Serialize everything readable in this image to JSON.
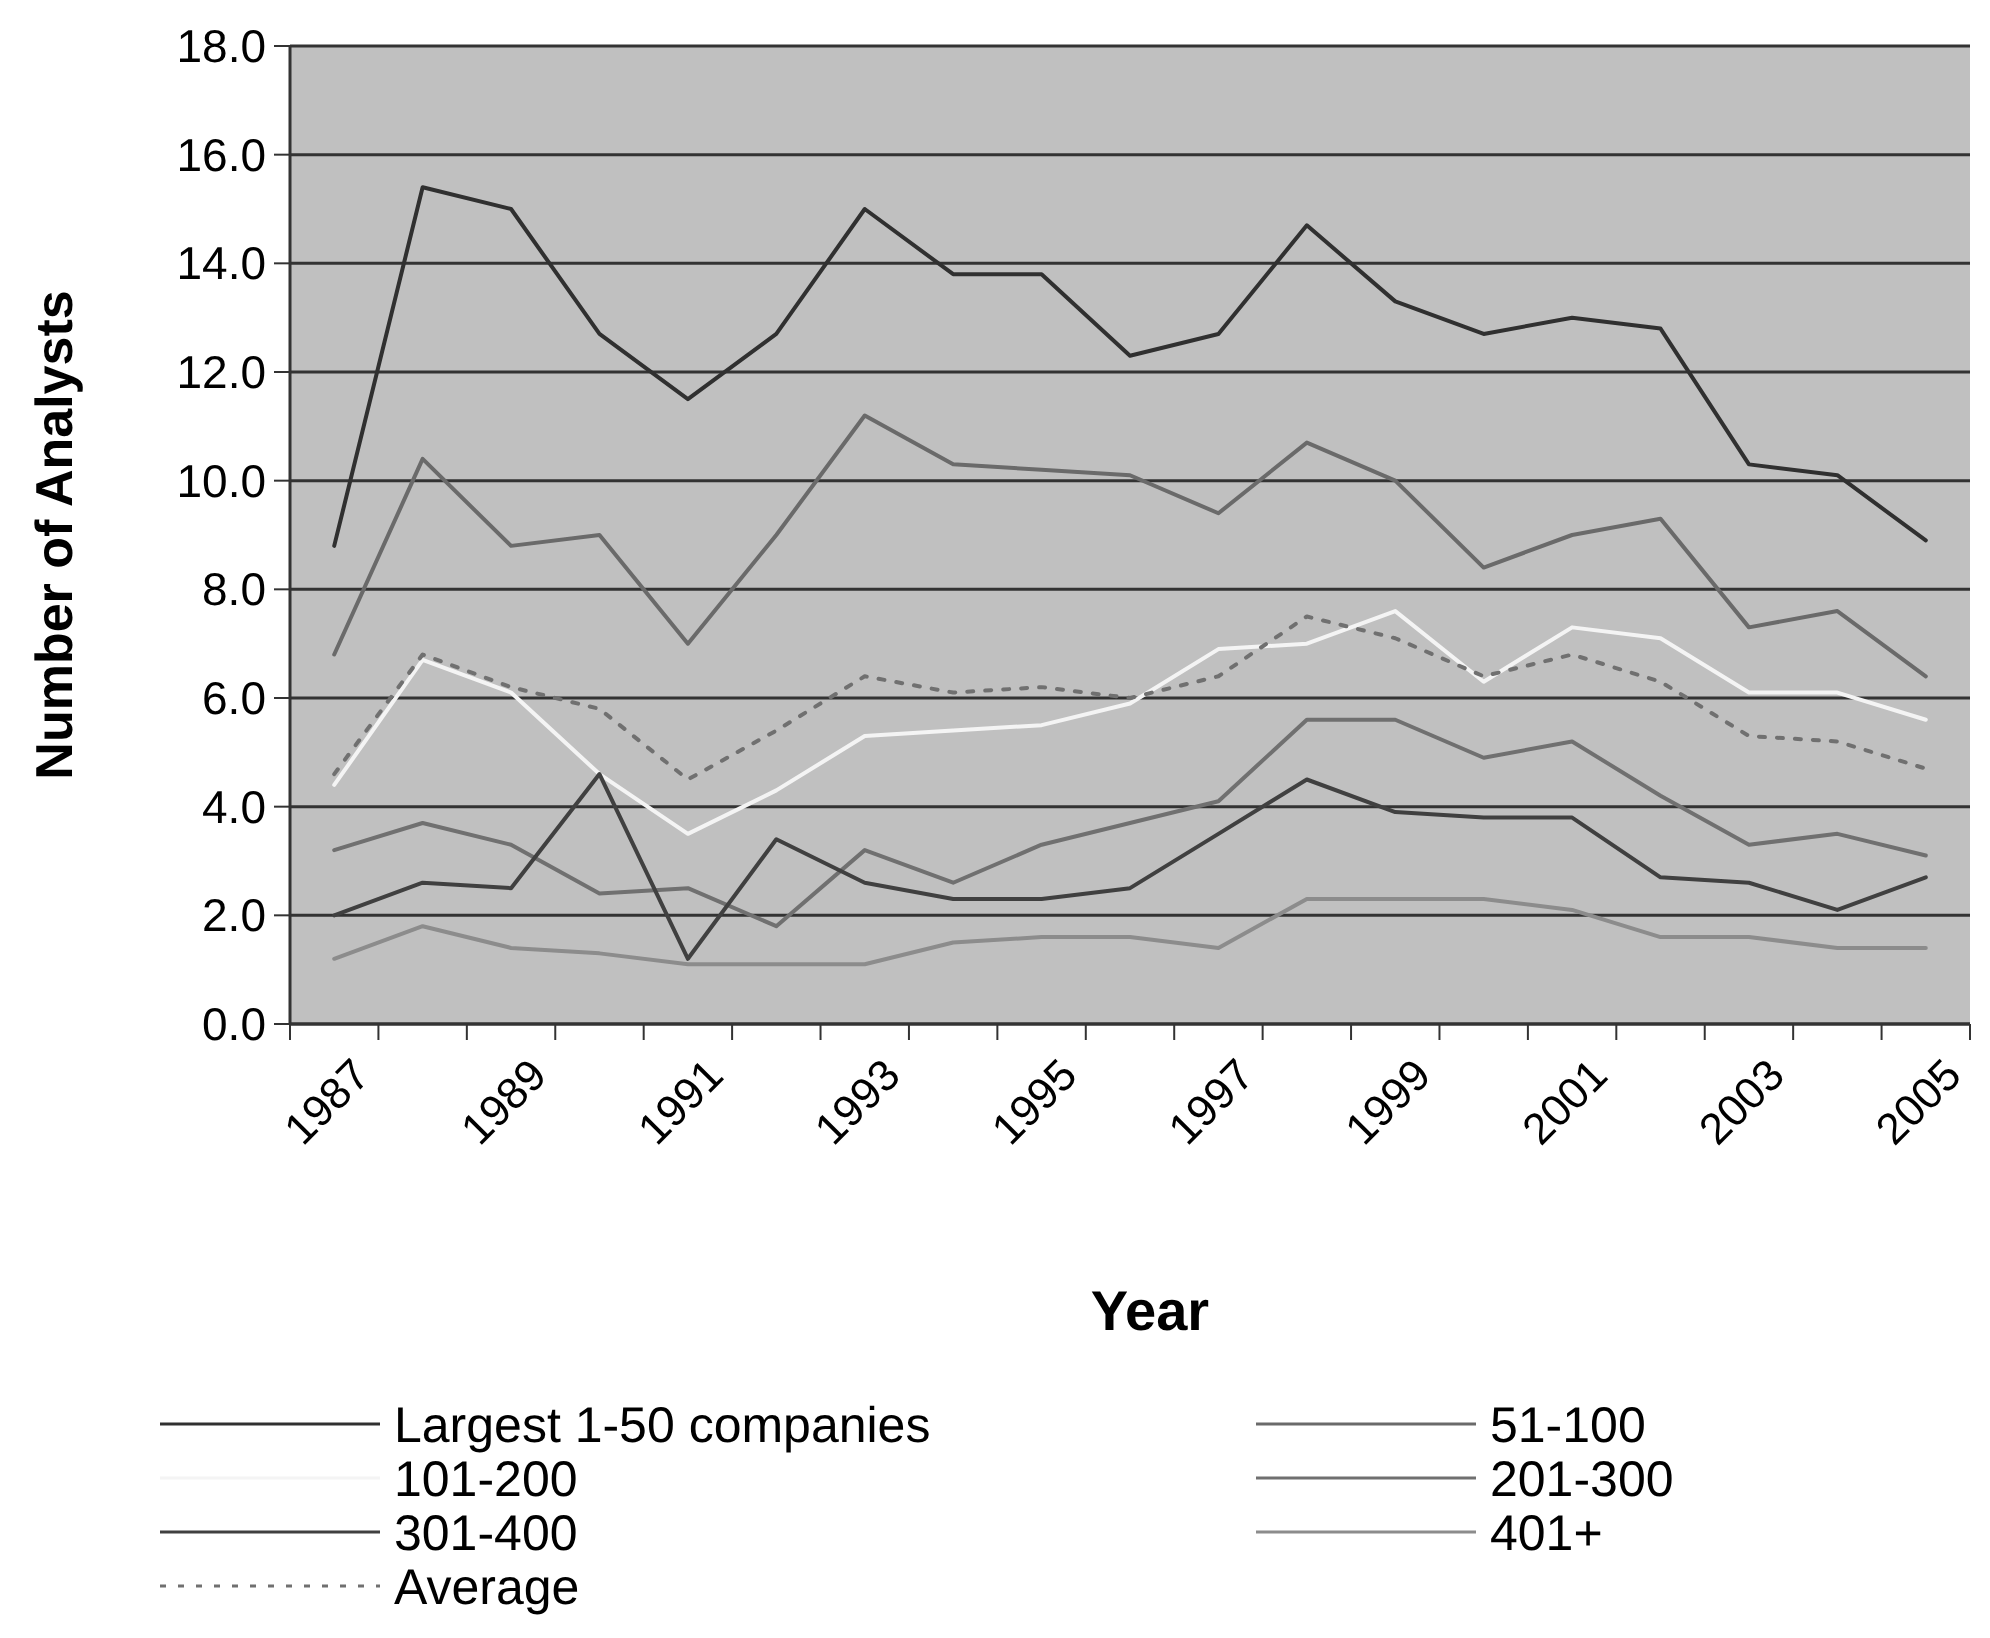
{
  "chart_data": {
    "type": "line",
    "xlabel": "Year",
    "ylabel": "Number of Analysts",
    "categories": [
      "1987",
      null,
      "1989",
      null,
      "1991",
      null,
      "1993",
      null,
      "1995",
      null,
      "1997",
      null,
      "1999",
      null,
      "2001",
      null,
      "2003",
      null,
      "2005"
    ],
    "ylim": [
      0,
      18
    ],
    "yticks": [
      {
        "value": 0,
        "label": "0.0"
      },
      {
        "value": 2,
        "label": "2.0"
      },
      {
        "value": 4,
        "label": "4.0"
      },
      {
        "value": 6,
        "label": "6.0"
      },
      {
        "value": 8,
        "label": "8.0"
      },
      {
        "value": 10,
        "label": "10.0"
      },
      {
        "value": 12,
        "label": "12.0"
      },
      {
        "value": 14,
        "label": "14.0"
      },
      {
        "value": 16,
        "label": "16.0"
      },
      {
        "value": 18,
        "label": "18.0"
      }
    ],
    "grid": "y",
    "legend": "bottom",
    "series": [
      {
        "name": "Largest 1-50 companies",
        "color": "#303030",
        "values": [
          8.8,
          15.4,
          15.0,
          12.7,
          11.5,
          12.7,
          15.0,
          13.8,
          13.8,
          12.3,
          12.7,
          14.7,
          13.3,
          12.7,
          13.0,
          12.8,
          10.3,
          10.1,
          8.9
        ]
      },
      {
        "name": "51-100",
        "color": "#6a6a6a",
        "values": [
          6.8,
          10.4,
          8.8,
          9.0,
          7.0,
          9.0,
          11.2,
          10.3,
          10.2,
          10.1,
          9.4,
          10.7,
          10.0,
          8.4,
          9.0,
          9.3,
          7.3,
          7.6,
          6.4
        ]
      },
      {
        "name": "101-200",
        "color": "#f4f4f4",
        "values": [
          4.4,
          6.7,
          6.1,
          4.6,
          3.5,
          4.3,
          5.3,
          5.4,
          5.5,
          5.9,
          6.9,
          7.0,
          7.6,
          6.3,
          7.3,
          7.1,
          6.1,
          6.1,
          5.6
        ]
      },
      {
        "name": "201-300",
        "color": "#707070",
        "values": [
          3.2,
          3.7,
          3.3,
          2.4,
          2.5,
          1.8,
          3.2,
          2.6,
          3.3,
          3.7,
          4.1,
          5.6,
          5.6,
          4.9,
          5.2,
          4.2,
          3.3,
          3.5,
          3.1
        ]
      },
      {
        "name": "301-400",
        "color": "#404040",
        "values": [
          2.0,
          2.6,
          2.5,
          4.6,
          1.2,
          3.4,
          2.6,
          2.3,
          2.3,
          2.5,
          3.5,
          4.5,
          3.9,
          3.8,
          3.8,
          2.7,
          2.6,
          2.1,
          2.7
        ]
      },
      {
        "name": "401+",
        "color": "#8c8c8c",
        "values": [
          1.2,
          1.8,
          1.4,
          1.3,
          1.1,
          1.1,
          1.1,
          1.5,
          1.6,
          1.6,
          1.4,
          2.3,
          2.3,
          2.3,
          2.1,
          1.6,
          1.6,
          1.4,
          1.4
        ]
      },
      {
        "name": "Average",
        "color": "#707070",
        "line_style": "dotted",
        "values": [
          4.6,
          6.8,
          6.2,
          5.8,
          4.5,
          5.4,
          6.4,
          6.1,
          6.2,
          6.0,
          6.4,
          7.5,
          7.1,
          6.4,
          6.8,
          6.3,
          5.3,
          5.2,
          4.7
        ]
      }
    ]
  }
}
